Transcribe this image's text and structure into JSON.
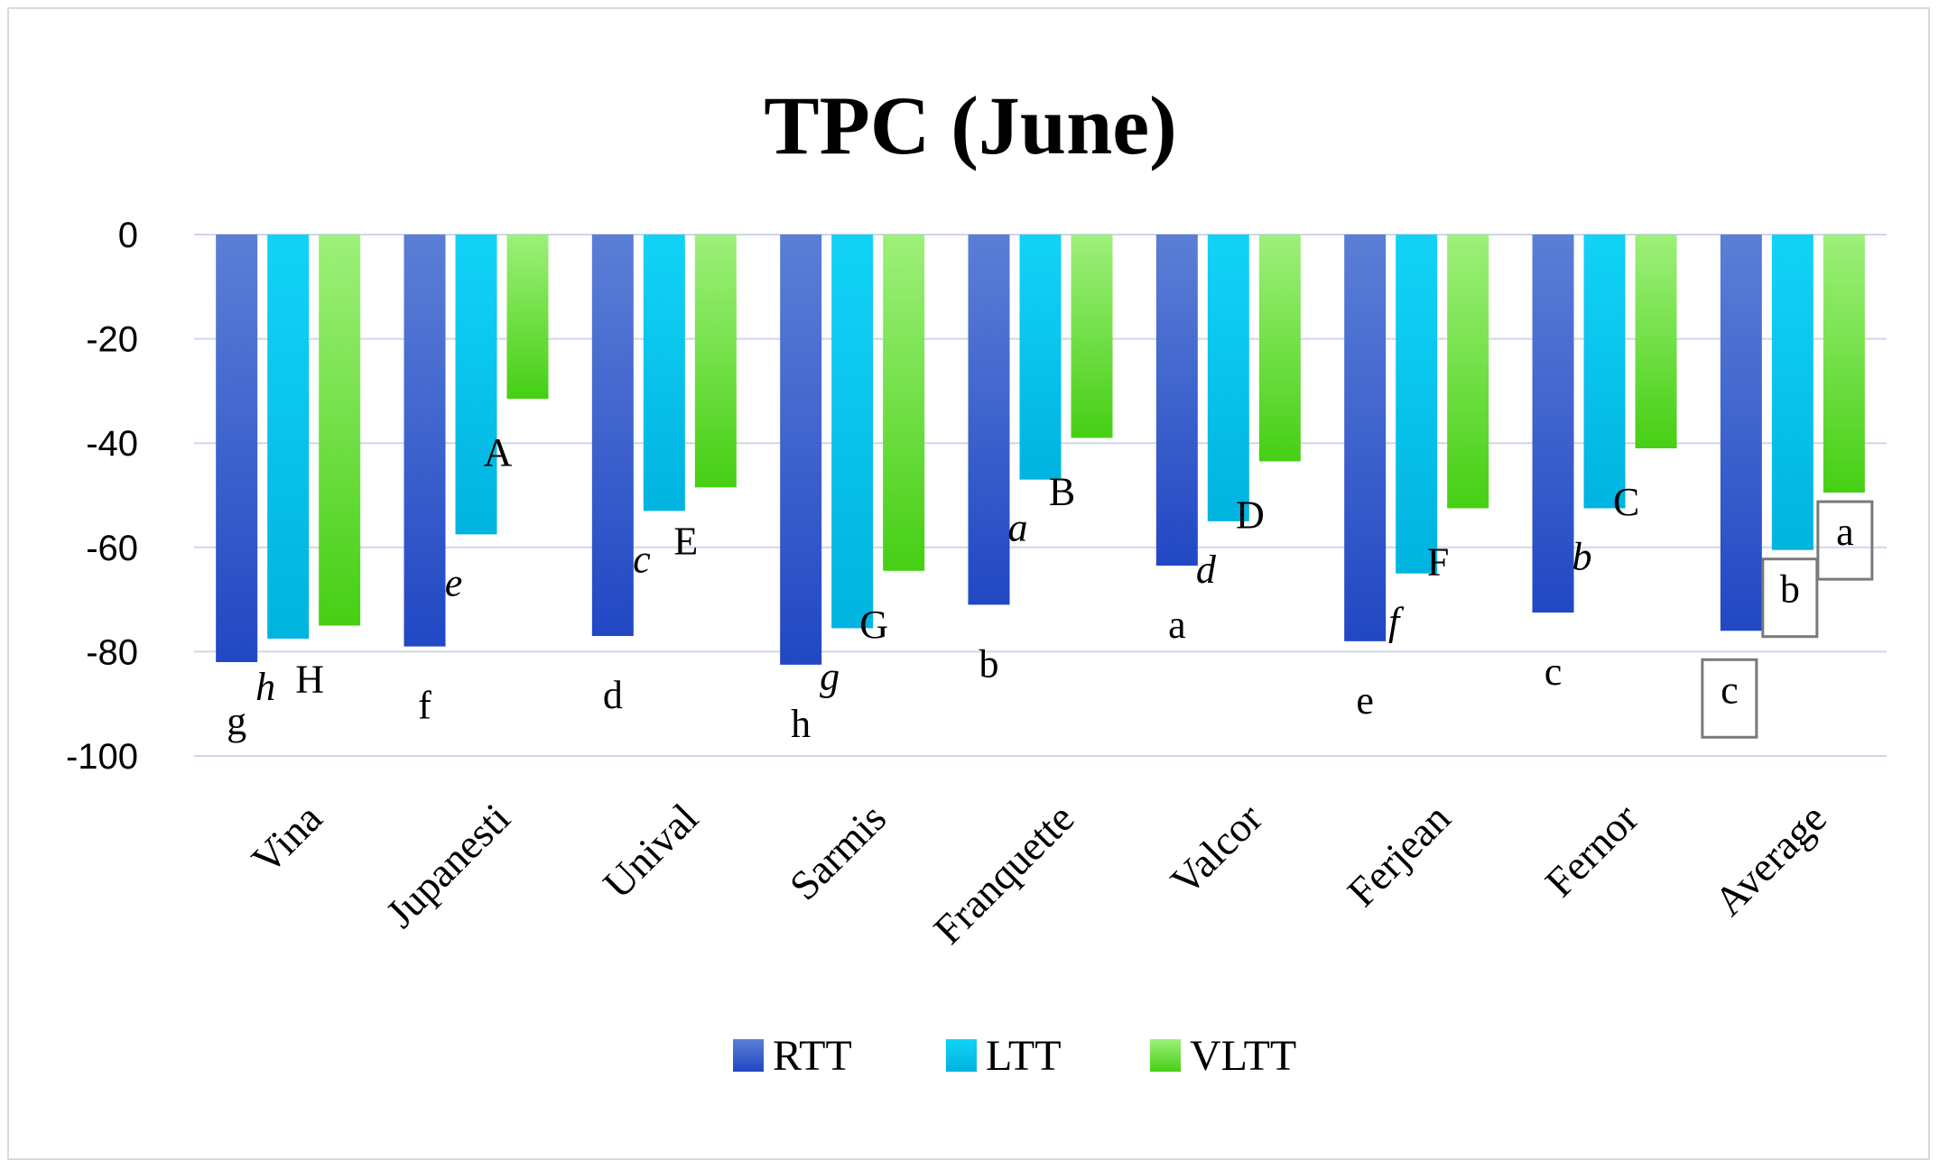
{
  "chart_data": {
    "type": "bar",
    "title": "TPC (June)",
    "xlabel": "",
    "ylabel": "",
    "ylim": [
      -100,
      0
    ],
    "yticks": [
      0,
      -20,
      -40,
      -60,
      -80,
      -100
    ],
    "ytick_labels": [
      "0",
      "-20",
      "-40",
      "-60",
      "-80",
      "-100"
    ],
    "grid": true,
    "legend_position": "bottom",
    "categories": [
      "Vina",
      "Jupanesti",
      "Unival",
      "Sarmis",
      "Franquette",
      "Valcor",
      "Ferjean",
      "Fernor",
      "Average"
    ],
    "series": [
      {
        "name": "RTT",
        "color_top": "#5b7fd6",
        "color_bottom": "#2147c4",
        "values": [
          -82,
          -79,
          -77,
          -82.5,
          -71,
          -63.5,
          -78,
          -72.5,
          -76
        ],
        "labels": [
          "g",
          "f",
          "d",
          "h",
          "b",
          "a",
          "e",
          "c",
          "c"
        ]
      },
      {
        "name": "LTT",
        "color_top": "#12d3f7",
        "color_bottom": "#00b3e0",
        "values": [
          -77.5,
          -57.5,
          -53,
          -75.5,
          -47,
          -55,
          -65,
          -52.5,
          -60.5
        ],
        "labels": [
          "h",
          "e",
          "c",
          "g",
          "a",
          "d",
          "f",
          "b",
          "b"
        ]
      },
      {
        "name": "VLTT",
        "color_top": "#9ef07a",
        "color_bottom": "#46cf14",
        "values": [
          -75,
          -31.5,
          -48.5,
          -64.5,
          -39,
          -43.5,
          -52.5,
          -41,
          -49.5
        ],
        "labels": [
          "H",
          "A",
          "E",
          "G",
          "B",
          "D",
          "F",
          "C",
          "a"
        ]
      }
    ],
    "boxed_labels_category": "Average"
  }
}
